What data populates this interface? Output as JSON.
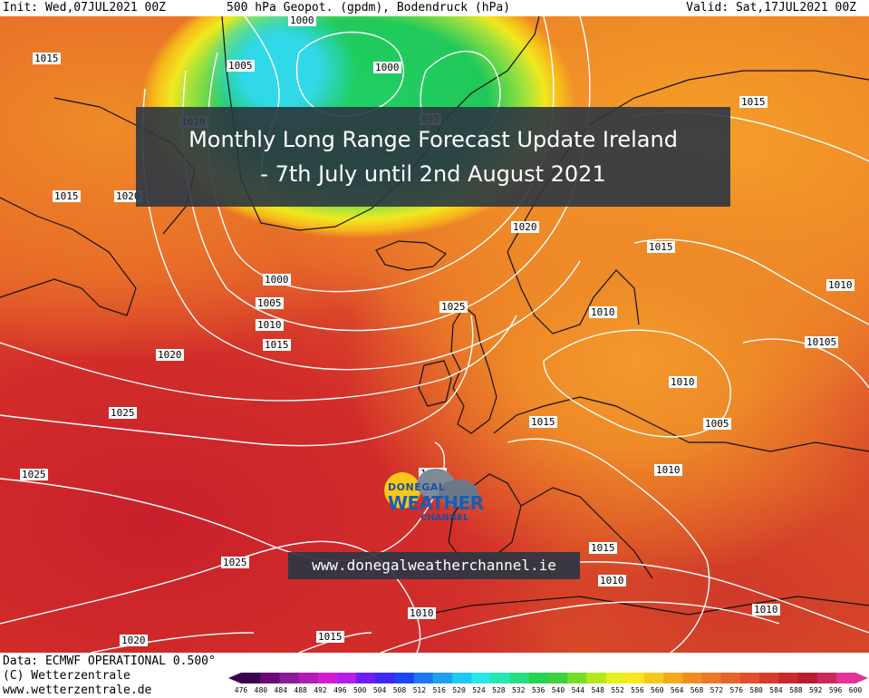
{
  "header": {
    "init": "Init: Wed,07JUL2021 00Z",
    "field": "500 hPa Geopot. (gpdm), Bodendruck (hPa)",
    "valid": "Valid: Sat,17JUL2021 00Z"
  },
  "title": {
    "line1": "Monthly Long Range Forecast Update Ireland",
    "line2": "- 7th July until 2nd August 2021"
  },
  "logo": {
    "line1": "DONEGAL",
    "line2": "WEATHER",
    "line3": "CHANNEL"
  },
  "website": "www.donegalweatherchannel.ie",
  "pressure_labels": [
    {
      "text": "1015"
    },
    {
      "text": "1005"
    },
    {
      "text": "1000"
    },
    {
      "text": "1000"
    },
    {
      "text": "995"
    },
    {
      "text": "1010"
    },
    {
      "text": "1015"
    },
    {
      "text": "1015"
    },
    {
      "text": "1020"
    },
    {
      "text": "1020"
    },
    {
      "text": "1015"
    },
    {
      "text": "1000"
    },
    {
      "text": "1005"
    },
    {
      "text": "1010"
    },
    {
      "text": "1015"
    },
    {
      "text": "1020"
    },
    {
      "text": "1025"
    },
    {
      "text": "1010"
    },
    {
      "text": "1010"
    },
    {
      "text": "10105"
    },
    {
      "text": "1025"
    },
    {
      "text": "1010"
    },
    {
      "text": "1015"
    },
    {
      "text": "1005"
    },
    {
      "text": "1025"
    },
    {
      "text": "1015"
    },
    {
      "text": "1010"
    },
    {
      "text": "1015"
    },
    {
      "text": "1025"
    },
    {
      "text": "1010"
    },
    {
      "text": "1010"
    },
    {
      "text": "1010"
    },
    {
      "text": "1020"
    },
    {
      "text": "1015"
    }
  ],
  "footer": {
    "data_source": "Data: ECMWF OPERATIONAL 0.500°",
    "copyright": "(C) Wetterzentrale",
    "url": "www.wetterzentrale.de"
  },
  "colorbar": {
    "values": [
      "476",
      "480",
      "484",
      "488",
      "492",
      "496",
      "500",
      "504",
      "508",
      "512",
      "516",
      "520",
      "524",
      "528",
      "532",
      "536",
      "540",
      "544",
      "548",
      "552",
      "556",
      "560",
      "564",
      "568",
      "572",
      "576",
      "580",
      "584",
      "588",
      "592",
      "596",
      "600"
    ],
    "colors": [
      "#3c0050",
      "#6a0a78",
      "#8c1a96",
      "#b01cb4",
      "#d21ed2",
      "#b41ee6",
      "#6e1ef0",
      "#3c28f0",
      "#1e46f0",
      "#1e78f0",
      "#1ea0f0",
      "#1ec8f0",
      "#28e6e6",
      "#28e6b4",
      "#28dc82",
      "#28d250",
      "#3cd23c",
      "#78dc28",
      "#b4e61e",
      "#e6f01e",
      "#fae61e",
      "#f5c81e",
      "#f5aa1e",
      "#f08c22",
      "#eb7828",
      "#e6642a",
      "#e0502c",
      "#d63c2c",
      "#c8282e",
      "#b41e30",
      "#c8285a",
      "#e63296"
    ]
  }
}
